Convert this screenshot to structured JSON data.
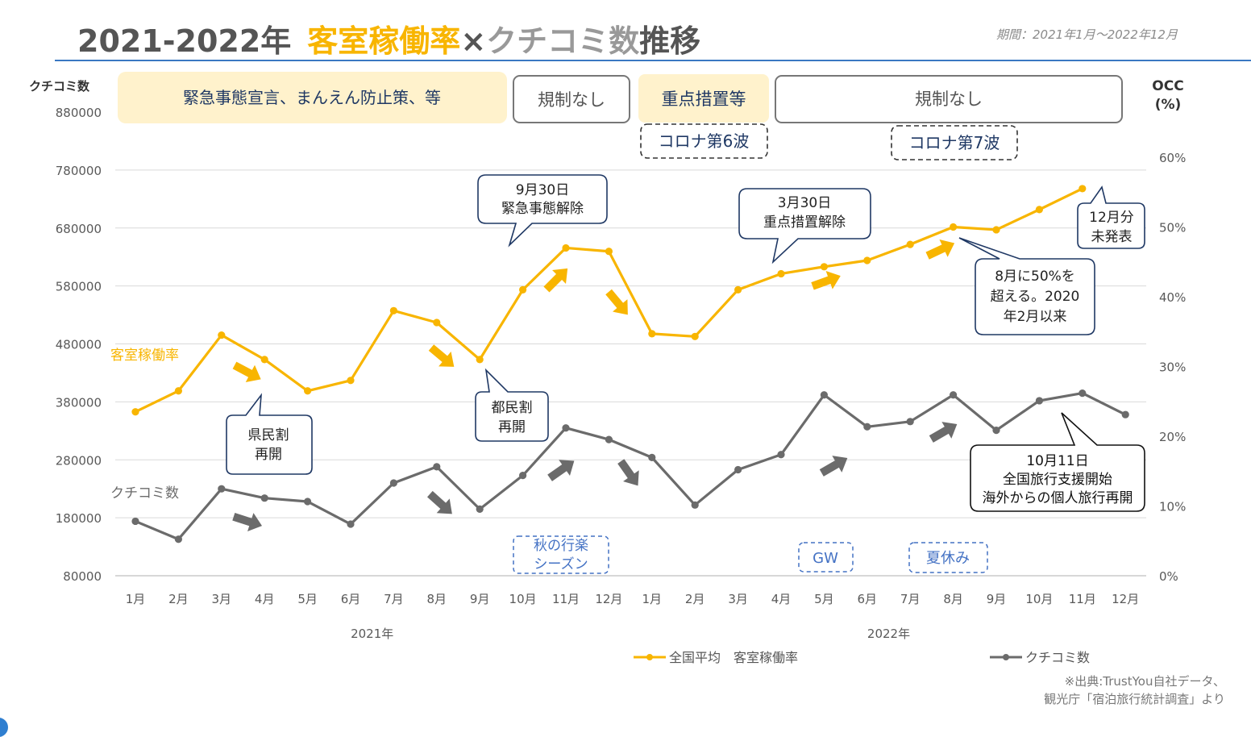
{
  "title": {
    "year_range": "2021-2022年",
    "occ_label": "客室稼働率",
    "times": "×",
    "reviews_label": "クチコミ数",
    "trend": "推移"
  },
  "period": "期間：2021年1月〜2022年12月",
  "y_axis_left_title": "クチコミ数",
  "y_axis_right_title_1": "OCC",
  "y_axis_right_title_2": "(%)",
  "source": {
    "line1": "※出典:TrustYou自社データ、",
    "line2": "観光庁「宿泊旅行統計調査」より"
  },
  "colors": {
    "occ": "#F8B500",
    "reviews": "#6b6b6b",
    "navy": "#1f3864",
    "blue_dashed": "#4472C4",
    "yellow_box": "#FFF2CC",
    "rule": "#3a78c2"
  },
  "policy_boxes": [
    {
      "label": "緊急事態宣言、まんえん防止策、等",
      "style": "filled"
    },
    {
      "label": "規制なし",
      "style": "outlined"
    },
    {
      "label": "重点措置等",
      "style": "filled"
    },
    {
      "label": "規制なし",
      "style": "outlined"
    }
  ],
  "wave_labels": [
    "コロナ第6波",
    "コロナ第7波"
  ],
  "season_labels": [
    "秋の行楽シーズン",
    "GW",
    "夏休み"
  ],
  "season_lines": [
    [
      "秋の行楽",
      "シーズン"
    ],
    [
      "GW"
    ],
    [
      "夏休み"
    ]
  ],
  "series_labels": {
    "occ": "客室稼働率",
    "reviews": "クチコミ数"
  },
  "callouts": [
    {
      "lines": [
        "9月30日",
        "緊急事態解除"
      ]
    },
    {
      "lines": [
        "3月30日",
        "重点措置解除"
      ]
    },
    {
      "lines": [
        "12月分",
        "未発表"
      ]
    },
    {
      "lines": [
        "8月に50%を",
        "超える。2020",
        "年2月以来"
      ]
    },
    {
      "lines": [
        "都民割",
        "再開"
      ]
    },
    {
      "lines": [
        "県民割",
        "再開"
      ]
    },
    {
      "lines": [
        "10月11日",
        "全国旅行支援開始",
        "海外からの個人旅行再開"
      ]
    }
  ],
  "chart_data": {
    "type": "line",
    "title": "2021-2022年 客室稼働率×クチコミ数推移",
    "categories": [
      "1月",
      "2月",
      "3月",
      "4月",
      "5月",
      "6月",
      "7月",
      "8月",
      "9月",
      "10月",
      "11月",
      "12月",
      "1月",
      "2月",
      "3月",
      "4月",
      "5月",
      "6月",
      "7月",
      "8月",
      "9月",
      "10月",
      "11月",
      "12月"
    ],
    "year_groups": [
      {
        "label": "2021年",
        "from": 0,
        "to": 11
      },
      {
        "label": "2022年",
        "from": 12,
        "to": 23
      }
    ],
    "left_axis": {
      "title": "クチコミ数",
      "ylim": [
        80000,
        880000
      ],
      "ticks": [
        80000,
        180000,
        280000,
        380000,
        480000,
        580000,
        680000,
        780000,
        880000
      ]
    },
    "right_axis": {
      "title": "OCC (%)",
      "ylim": [
        0,
        60
      ],
      "ticks": [
        0,
        10,
        20,
        30,
        40,
        50,
        60
      ],
      "tick_labels": [
        "0%",
        "10%",
        "20%",
        "30%",
        "40%",
        "50%",
        "60%"
      ]
    },
    "grid": true,
    "legend_position": "bottom",
    "series": [
      {
        "name": "全国平均　客室稼働率",
        "axis": "right",
        "values": [
          23.5,
          26.5,
          34.5,
          31.0,
          26.5,
          28.0,
          38.0,
          36.3,
          31.0,
          41.0,
          47.0,
          46.5,
          34.7,
          34.3,
          41.0,
          43.3,
          44.3,
          45.2,
          47.5,
          50.0,
          49.6,
          52.5,
          55.5,
          null
        ]
      },
      {
        "name": "クチコミ数",
        "axis": "left",
        "values": [
          174000,
          143000,
          230000,
          214000,
          208000,
          169000,
          240000,
          268000,
          195000,
          253000,
          335000,
          315000,
          284000,
          202000,
          263000,
          289000,
          392000,
          337000,
          346000,
          392000,
          331000,
          382000,
          395000,
          358000
        ]
      }
    ]
  }
}
